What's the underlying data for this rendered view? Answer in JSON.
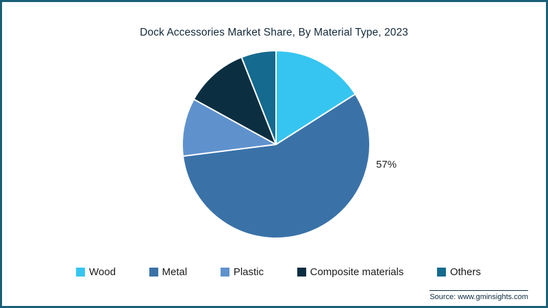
{
  "frame": {
    "border_color": "#1a5f78",
    "background": "#ffffff"
  },
  "chart_data": {
    "type": "pie",
    "title": "Dock Accessories Market Share, By Material Type, 2023",
    "categories": [
      "Wood",
      "Metal",
      "Plastic",
      "Composite materials",
      "Others"
    ],
    "values": [
      16,
      57,
      10,
      11,
      6
    ],
    "colors": [
      "#35c5f0",
      "#3a72a8",
      "#5f92cd",
      "#0c2e41",
      "#156a8f"
    ],
    "data_labels": [
      {
        "category": "Metal",
        "text": "57%"
      }
    ],
    "legend_position": "bottom",
    "start_angle": "top",
    "direction": "clockwise"
  },
  "source": {
    "label": "Source: www.gminsights.com"
  }
}
